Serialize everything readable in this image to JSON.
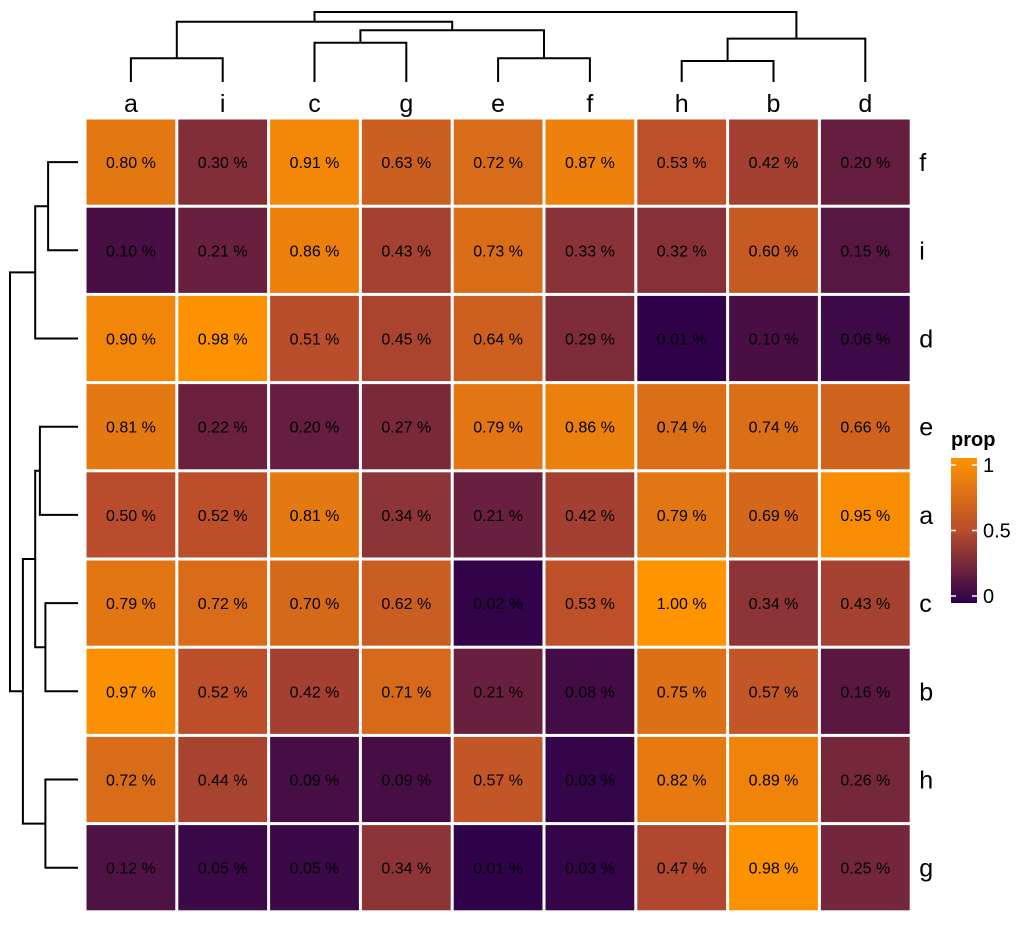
{
  "chart_data": {
    "type": "heatmap",
    "title": "",
    "xlabel": "",
    "ylabel": "",
    "columns": [
      "a",
      "i",
      "c",
      "g",
      "e",
      "f",
      "h",
      "b",
      "d"
    ],
    "rows": [
      "f",
      "i",
      "d",
      "e",
      "a",
      "c",
      "b",
      "h",
      "g"
    ],
    "values": [
      [
        0.8,
        0.3,
        0.91,
        0.63,
        0.72,
        0.87,
        0.53,
        0.42,
        0.2
      ],
      [
        0.1,
        0.21,
        0.86,
        0.43,
        0.73,
        0.33,
        0.32,
        0.6,
        0.15
      ],
      [
        0.9,
        0.98,
        0.51,
        0.45,
        0.64,
        0.29,
        0.01,
        0.1,
        0.06
      ],
      [
        0.81,
        0.22,
        0.2,
        0.27,
        0.79,
        0.86,
        0.74,
        0.74,
        0.66
      ],
      [
        0.5,
        0.52,
        0.81,
        0.34,
        0.21,
        0.42,
        0.79,
        0.69,
        0.95
      ],
      [
        0.79,
        0.72,
        0.7,
        0.62,
        0.02,
        0.53,
        1.0,
        0.34,
        0.43
      ],
      [
        0.97,
        0.52,
        0.42,
        0.71,
        0.21,
        0.08,
        0.75,
        0.57,
        0.16
      ],
      [
        0.72,
        0.44,
        0.09,
        0.09,
        0.57,
        0.03,
        0.82,
        0.89,
        0.26
      ],
      [
        0.12,
        0.05,
        0.05,
        0.34,
        0.01,
        0.03,
        0.47,
        0.98,
        0.25
      ]
    ],
    "cell_labels": [
      [
        "0.80 %",
        "0.30 %",
        "0.91 %",
        "0.63 %",
        "0.72 %",
        "0.87 %",
        "0.53 %",
        "0.42 %",
        "0.20 %"
      ],
      [
        "0.10 %",
        "0.21 %",
        "0.86 %",
        "0.43 %",
        "0.73 %",
        "0.33 %",
        "0.32 %",
        "0.60 %",
        "0.15 %"
      ],
      [
        "0.90 %",
        "0.98 %",
        "0.51 %",
        "0.45 %",
        "0.64 %",
        "0.29 %",
        "0.01 %",
        "0.10 %",
        "0.06 %"
      ],
      [
        "0.81 %",
        "0.22 %",
        "0.20 %",
        "0.27 %",
        "0.79 %",
        "0.86 %",
        "0.74 %",
        "0.74 %",
        "0.66 %"
      ],
      [
        "0.50 %",
        "0.52 %",
        "0.81 %",
        "0.34 %",
        "0.21 %",
        "0.42 %",
        "0.79 %",
        "0.69 %",
        "0.95 %"
      ],
      [
        "0.79 %",
        "0.72 %",
        "0.70 %",
        "0.62 %",
        "0.02 %",
        "0.53 %",
        "1.00 %",
        "0.34 %",
        "0.43 %"
      ],
      [
        "0.97 %",
        "0.52 %",
        "0.42 %",
        "0.71 %",
        "0.21 %",
        "0.08 %",
        "0.75 %",
        "0.57 %",
        "0.16 %"
      ],
      [
        "0.72 %",
        "0.44 %",
        "0.09 %",
        "0.09 %",
        "0.57 %",
        "0.03 %",
        "0.82 %",
        "0.89 %",
        "0.26 %"
      ],
      [
        "0.12 %",
        "0.05 %",
        "0.05 %",
        "0.34 %",
        "0.01 %",
        "0.03 %",
        "0.47 %",
        "0.98 %",
        "0.25 %"
      ]
    ],
    "legend": {
      "title": "prop",
      "ticks": [
        1,
        0.5,
        0
      ],
      "tick_labels": [
        "1",
        "0.5",
        "0"
      ],
      "placement": "right",
      "colors": [
        "#2d004b",
        "#b94c2c",
        "#ff9400"
      ]
    },
    "col_dendrogram": [
      {
        "a": "a",
        "b": "i",
        "h": 0.34
      },
      {
        "a": "e",
        "b": "f",
        "h": 0.34
      },
      {
        "a": "h",
        "b": "b",
        "h": 0.3
      },
      {
        "a": "c",
        "b": "g",
        "h": 0.56
      },
      {
        "a": "cg",
        "b": "ef",
        "h": 0.74
      },
      {
        "a": "hb",
        "b": "d",
        "h": 0.62
      },
      {
        "a": "ai",
        "b": "cgef",
        "h": 0.86
      },
      {
        "a": "aicgef",
        "b": "hbd",
        "h": 1.0
      }
    ],
    "row_dendrogram": [
      {
        "a": "f",
        "b": "i",
        "h": 0.44
      },
      {
        "a": "fi",
        "b": "d",
        "h": 0.63
      },
      {
        "a": "e",
        "b": "a",
        "h": 0.56
      },
      {
        "a": "c",
        "b": "b",
        "h": 0.48
      },
      {
        "a": "ea",
        "b": "cb",
        "h": 0.63
      },
      {
        "a": "h",
        "b": "g",
        "h": 0.48
      },
      {
        "a": "eacb",
        "b": "hg",
        "h": 0.81
      },
      {
        "a": "fid",
        "b": "eacbhg",
        "h": 1.0
      }
    ]
  }
}
